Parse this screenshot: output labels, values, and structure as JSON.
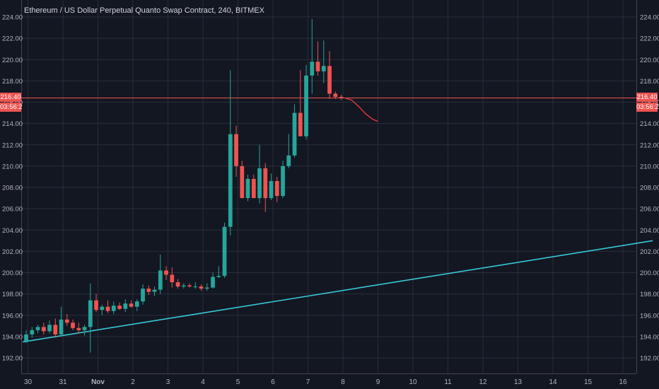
{
  "chart_data": {
    "type": "candlestick",
    "title": "Ethereum / US Dollar Perpetual Quanto Swap Contract, 240, BITMEX",
    "symbol": "Ethereum / US Dollar Perpetual Quanto Swap Contract",
    "interval": "240",
    "exchange": "BITMEX",
    "ylim": [
      191,
      225
    ],
    "y_ticks": [
      "192.00",
      "194.00",
      "196.00",
      "198.00",
      "200.00",
      "202.00",
      "204.00",
      "206.00",
      "208.00",
      "210.00",
      "212.00",
      "214.00",
      "216.00",
      "218.00",
      "220.00",
      "222.00",
      "224.00"
    ],
    "x_ticks": [
      {
        "label": "30",
        "day": -0.05
      },
      {
        "label": "31",
        "day": 0.95
      },
      {
        "label": "Nov",
        "day": 1.95
      },
      {
        "label": "2",
        "day": 2.95
      },
      {
        "label": "3",
        "day": 3.95
      },
      {
        "label": "4",
        "day": 4.95
      },
      {
        "label": "5",
        "day": 5.95
      },
      {
        "label": "6",
        "day": 6.95
      },
      {
        "label": "7",
        "day": 7.95
      },
      {
        "label": "8",
        "day": 8.95
      },
      {
        "label": "9",
        "day": 9.95
      },
      {
        "label": "10",
        "day": 10.95
      },
      {
        "label": "11",
        "day": 11.95
      },
      {
        "label": "12",
        "day": 12.95
      },
      {
        "label": "13",
        "day": 13.95
      },
      {
        "label": "14",
        "day": 14.95
      },
      {
        "label": "15",
        "day": 15.95
      },
      {
        "label": "16",
        "day": 16.95
      }
    ],
    "candles": [
      {
        "o": 193.6,
        "h": 194.6,
        "l": 193.4,
        "c": 194.2
      },
      {
        "o": 194.2,
        "h": 194.9,
        "l": 193.9,
        "c": 194.6
      },
      {
        "o": 194.6,
        "h": 195.1,
        "l": 194.3,
        "c": 194.9
      },
      {
        "o": 194.9,
        "h": 195.3,
        "l": 194.2,
        "c": 194.5
      },
      {
        "o": 194.5,
        "h": 195.5,
        "l": 194.3,
        "c": 195.1
      },
      {
        "o": 195.1,
        "h": 195.7,
        "l": 193.9,
        "c": 194.2
      },
      {
        "o": 194.2,
        "h": 196.8,
        "l": 194.0,
        "c": 195.6
      },
      {
        "o": 195.6,
        "h": 196.1,
        "l": 195.0,
        "c": 195.3
      },
      {
        "o": 195.3,
        "h": 195.6,
        "l": 194.6,
        "c": 194.8
      },
      {
        "o": 194.8,
        "h": 195.3,
        "l": 194.3,
        "c": 194.6
      },
      {
        "o": 194.6,
        "h": 195.1,
        "l": 194.1,
        "c": 194.9
      },
      {
        "o": 194.9,
        "h": 199.0,
        "l": 192.5,
        "c": 197.4
      },
      {
        "o": 197.4,
        "h": 198.0,
        "l": 196.3,
        "c": 196.5
      },
      {
        "o": 196.5,
        "h": 197.0,
        "l": 196.0,
        "c": 196.8
      },
      {
        "o": 196.8,
        "h": 197.4,
        "l": 196.2,
        "c": 196.4
      },
      {
        "o": 196.4,
        "h": 197.3,
        "l": 196.1,
        "c": 196.9
      },
      {
        "o": 196.9,
        "h": 197.2,
        "l": 196.5,
        "c": 196.6
      },
      {
        "o": 196.6,
        "h": 197.5,
        "l": 196.3,
        "c": 197.1
      },
      {
        "o": 197.1,
        "h": 197.4,
        "l": 196.7,
        "c": 196.8
      },
      {
        "o": 196.8,
        "h": 197.5,
        "l": 196.4,
        "c": 197.3
      },
      {
        "o": 197.3,
        "h": 198.9,
        "l": 197.0,
        "c": 198.5
      },
      {
        "o": 198.5,
        "h": 198.8,
        "l": 197.9,
        "c": 198.2
      },
      {
        "o": 198.2,
        "h": 198.7,
        "l": 197.8,
        "c": 198.4
      },
      {
        "o": 198.4,
        "h": 201.7,
        "l": 198.0,
        "c": 200.2
      },
      {
        "o": 200.2,
        "h": 200.6,
        "l": 199.3,
        "c": 199.8
      },
      {
        "o": 199.8,
        "h": 200.5,
        "l": 198.6,
        "c": 199.1
      },
      {
        "o": 199.1,
        "h": 199.4,
        "l": 198.5,
        "c": 198.7
      },
      {
        "o": 198.7,
        "h": 199.0,
        "l": 198.5,
        "c": 198.8
      },
      {
        "o": 198.8,
        "h": 199.0,
        "l": 198.6,
        "c": 198.7
      },
      {
        "o": 198.7,
        "h": 199.1,
        "l": 198.5,
        "c": 198.7
      },
      {
        "o": 198.7,
        "h": 198.9,
        "l": 198.3,
        "c": 198.5
      },
      {
        "o": 198.5,
        "h": 199.0,
        "l": 198.3,
        "c": 198.6
      },
      {
        "o": 198.6,
        "h": 200.0,
        "l": 198.5,
        "c": 199.6
      },
      {
        "o": 199.6,
        "h": 200.6,
        "l": 199.5,
        "c": 199.7
      },
      {
        "o": 199.7,
        "h": 204.7,
        "l": 199.5,
        "c": 204.3
      },
      {
        "o": 204.3,
        "h": 219.0,
        "l": 203.5,
        "c": 213.0
      },
      {
        "o": 213.0,
        "h": 213.8,
        "l": 209.0,
        "c": 210.0
      },
      {
        "o": 210.0,
        "h": 210.5,
        "l": 207.0,
        "c": 207.0
      },
      {
        "o": 207.0,
        "h": 209.2,
        "l": 206.7,
        "c": 208.8
      },
      {
        "o": 208.8,
        "h": 209.2,
        "l": 207.0,
        "c": 207.0
      },
      {
        "o": 207.0,
        "h": 212.0,
        "l": 206.5,
        "c": 209.8
      },
      {
        "o": 209.8,
        "h": 210.3,
        "l": 205.7,
        "c": 207.0
      },
      {
        "o": 207.0,
        "h": 209.3,
        "l": 206.8,
        "c": 208.6
      },
      {
        "o": 208.6,
        "h": 209.0,
        "l": 206.6,
        "c": 207.2
      },
      {
        "o": 207.2,
        "h": 210.5,
        "l": 207.0,
        "c": 210.0
      },
      {
        "o": 210.0,
        "h": 213.0,
        "l": 209.8,
        "c": 211.0
      },
      {
        "o": 211.0,
        "h": 215.8,
        "l": 210.8,
        "c": 215.0
      },
      {
        "o": 215.0,
        "h": 219.0,
        "l": 212.8,
        "c": 212.8
      },
      {
        "o": 212.8,
        "h": 219.5,
        "l": 212.5,
        "c": 218.5
      },
      {
        "o": 218.5,
        "h": 223.8,
        "l": 216.8,
        "c": 219.8
      },
      {
        "o": 219.8,
        "h": 221.7,
        "l": 218.5,
        "c": 218.9
      },
      {
        "o": 218.9,
        "h": 221.8,
        "l": 217.8,
        "c": 219.4
      },
      {
        "o": 219.4,
        "h": 220.8,
        "l": 216.3,
        "c": 216.8
      },
      {
        "o": 216.8,
        "h": 217.0,
        "l": 216.3,
        "c": 216.5
      },
      {
        "o": 216.5,
        "h": 216.7,
        "l": 216.2,
        "c": 216.4
      }
    ],
    "projection": {
      "color": "#e8343c",
      "points": [
        [
          9.0,
          216.4
        ],
        [
          9.2,
          216.2
        ],
        [
          9.4,
          215.6
        ],
        [
          9.6,
          214.9
        ],
        [
          9.8,
          214.4
        ],
        [
          9.95,
          214.2
        ]
      ]
    },
    "trendline": {
      "color": "#36c9d6",
      "start": [
        -0.2,
        193.5
      ],
      "end": [
        17.8,
        203.0
      ]
    },
    "current_price": {
      "value": 216.4,
      "label": "216.40",
      "countdown": "03:56:2"
    },
    "colors": {
      "up": "#26a69a",
      "down": "#ef5350",
      "background": "#131722",
      "grid": "#2a2e39"
    },
    "grid": true
  }
}
